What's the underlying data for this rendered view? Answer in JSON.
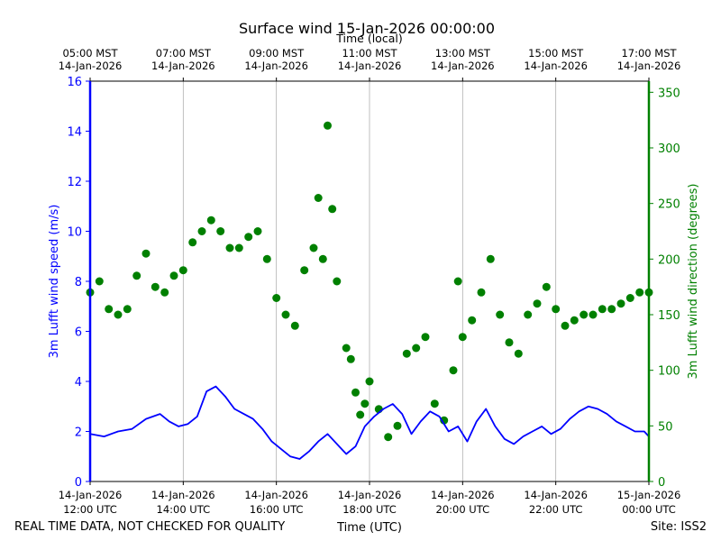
{
  "chart_data": {
    "type": "line",
    "title": "Surface wind 15-Jan-2026 00:00:00",
    "top_axis_label": "Time (local)",
    "xlabel": "Time (UTC)",
    "ylabel_left": "3m Lufft wind speed (m/s)",
    "ylabel_right": "3m Lufft wind direction (degrees)",
    "footer_left": "REAL TIME DATA, NOT CHECKED FOR QUALITY",
    "footer_right": "Site: ISS2",
    "x_range_hours_utc": [
      12,
      24
    ],
    "ylim_left": [
      0,
      16
    ],
    "ylim_right": [
      0,
      360
    ],
    "y_ticks_left": [
      "0",
      "2",
      "4",
      "6",
      "8",
      "10",
      "12",
      "14",
      "16"
    ],
    "y_ticks_right": [
      "0",
      "50",
      "100",
      "150",
      "200",
      "250",
      "300",
      "350"
    ],
    "bottom_ticks": [
      {
        "hour": 12,
        "date": "14-Jan-2026",
        "time": "12:00 UTC"
      },
      {
        "hour": 14,
        "date": "14-Jan-2026",
        "time": "14:00 UTC"
      },
      {
        "hour": 16,
        "date": "14-Jan-2026",
        "time": "16:00 UTC"
      },
      {
        "hour": 18,
        "date": "14-Jan-2026",
        "time": "18:00 UTC"
      },
      {
        "hour": 20,
        "date": "14-Jan-2026",
        "time": "20:00 UTC"
      },
      {
        "hour": 22,
        "date": "14-Jan-2026",
        "time": "22:00 UTC"
      },
      {
        "hour": 24,
        "date": "15-Jan-2026",
        "time": "00:00 UTC"
      }
    ],
    "top_ticks": [
      {
        "hour": 12,
        "time": "05:00 MST",
        "date": "14-Jan-2026"
      },
      {
        "hour": 14,
        "time": "07:00 MST",
        "date": "14-Jan-2026"
      },
      {
        "hour": 16,
        "time": "09:00 MST",
        "date": "14-Jan-2026"
      },
      {
        "hour": 18,
        "time": "11:00 MST",
        "date": "14-Jan-2026"
      },
      {
        "hour": 20,
        "time": "13:00 MST",
        "date": "14-Jan-2026"
      },
      {
        "hour": 22,
        "time": "15:00 MST",
        "date": "14-Jan-2026"
      },
      {
        "hour": 24,
        "time": "17:00 MST",
        "date": "14-Jan-2026"
      }
    ],
    "series": [
      {
        "name": "wind speed",
        "axis": "left",
        "style": "line",
        "color": "#0000ff",
        "hours": [
          12.0,
          12.3,
          12.6,
          12.9,
          13.2,
          13.5,
          13.7,
          13.9,
          14.1,
          14.3,
          14.5,
          14.7,
          14.9,
          15.1,
          15.3,
          15.5,
          15.7,
          15.9,
          16.1,
          16.3,
          16.5,
          16.7,
          16.9,
          17.1,
          17.3,
          17.5,
          17.7,
          17.9,
          18.1,
          18.3,
          18.5,
          18.7,
          18.9,
          19.1,
          19.3,
          19.5,
          19.7,
          19.9,
          20.1,
          20.3,
          20.5,
          20.7,
          20.9,
          21.1,
          21.3,
          21.5,
          21.7,
          21.9,
          22.1,
          22.3,
          22.5,
          22.7,
          22.9,
          23.1,
          23.3,
          23.5,
          23.7,
          23.9,
          24.0
        ],
        "values": [
          1.9,
          1.8,
          2.0,
          2.1,
          2.5,
          2.7,
          2.4,
          2.2,
          2.3,
          2.6,
          3.6,
          3.8,
          3.4,
          2.9,
          2.7,
          2.5,
          2.1,
          1.6,
          1.3,
          1.0,
          0.9,
          1.2,
          1.6,
          1.9,
          1.5,
          1.1,
          1.4,
          2.2,
          2.6,
          2.9,
          3.1,
          2.7,
          1.9,
          2.4,
          2.8,
          2.6,
          2.0,
          2.2,
          1.6,
          2.4,
          2.9,
          2.2,
          1.7,
          1.5,
          1.8,
          2.0,
          2.2,
          1.9,
          2.1,
          2.5,
          2.8,
          3.0,
          2.9,
          2.7,
          2.4,
          2.2,
          2.0,
          2.0,
          1.8
        ]
      },
      {
        "name": "wind direction",
        "axis": "right",
        "style": "scatter",
        "color": "#008000",
        "hours": [
          12.0,
          12.2,
          12.4,
          12.6,
          12.8,
          13.0,
          13.2,
          13.4,
          13.6,
          13.8,
          14.0,
          14.2,
          14.4,
          14.6,
          14.8,
          15.0,
          15.2,
          15.4,
          15.6,
          15.8,
          16.0,
          16.2,
          16.4,
          16.6,
          16.8,
          16.9,
          17.0,
          17.1,
          17.2,
          17.3,
          17.5,
          17.6,
          17.7,
          17.8,
          17.9,
          18.0,
          18.2,
          18.4,
          18.6,
          18.8,
          19.0,
          19.2,
          19.4,
          19.6,
          19.8,
          19.9,
          20.0,
          20.2,
          20.4,
          20.6,
          20.8,
          21.0,
          21.2,
          21.4,
          21.6,
          21.8,
          22.0,
          22.2,
          22.4,
          22.6,
          22.8,
          23.0,
          23.2,
          23.4,
          23.6,
          23.8,
          24.0
        ],
        "values": [
          170,
          180,
          155,
          150,
          155,
          185,
          205,
          175,
          170,
          185,
          190,
          215,
          225,
          235,
          225,
          210,
          210,
          220,
          225,
          200,
          165,
          150,
          140,
          190,
          210,
          255,
          200,
          320,
          245,
          180,
          120,
          110,
          80,
          60,
          70,
          90,
          65,
          40,
          50,
          115,
          120,
          130,
          70,
          55,
          100,
          180,
          130,
          145,
          170,
          200,
          150,
          125,
          115,
          150,
          160,
          175,
          155,
          140,
          145,
          150,
          150,
          155,
          155,
          160,
          165,
          170,
          170
        ]
      }
    ]
  }
}
